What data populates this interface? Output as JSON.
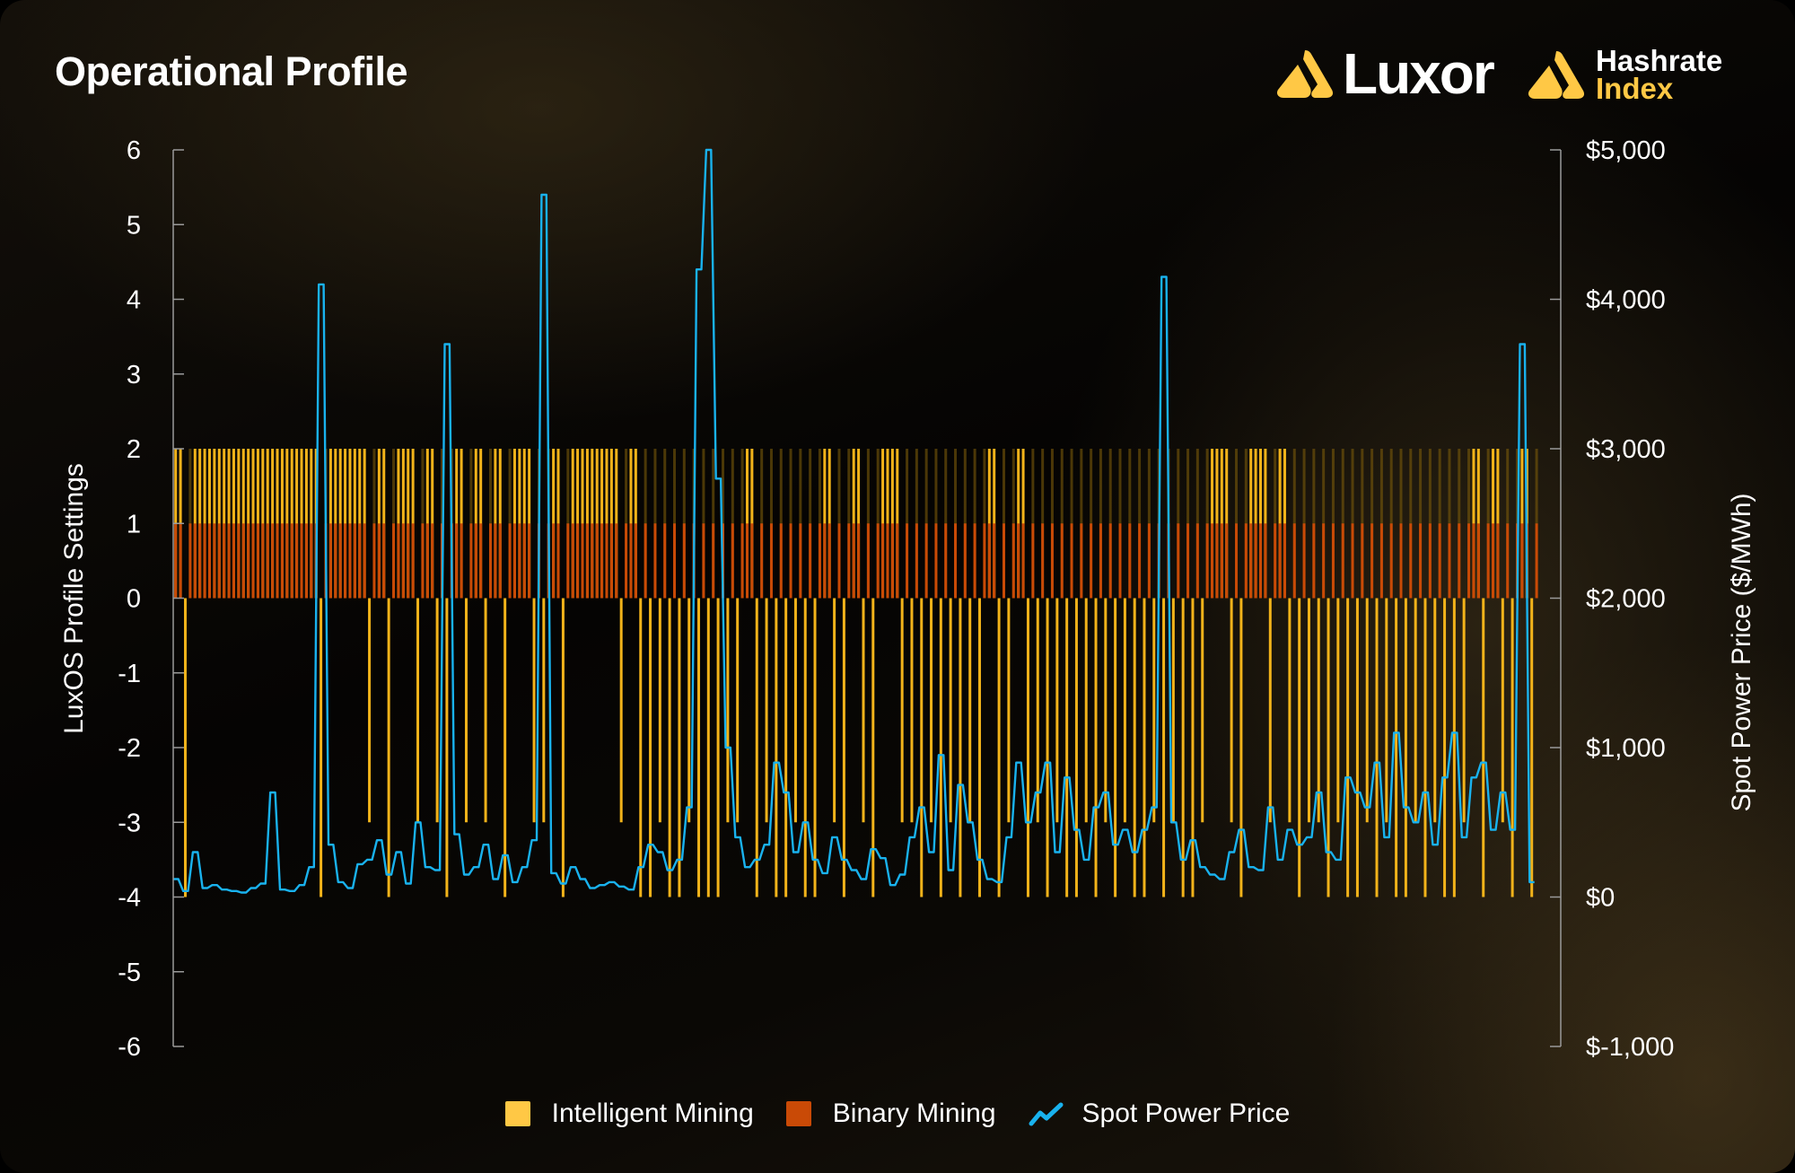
{
  "title": "Operational Profile",
  "logos": {
    "luxor": "Luxor",
    "hashrate_index_line1": "Hashrate",
    "hashrate_index_line2": "Index"
  },
  "colors": {
    "intelligent": "#F2B31A",
    "binary": "#C94A06",
    "price": "#19B2EE",
    "brand": "#FFC845"
  },
  "chart_data": {
    "type": "bar+line",
    "title": "Operational Profile",
    "ylabel": "LuxOS Profile Settings",
    "y2label": "Spot Power Price ($/MWh)",
    "ylim": [
      -6,
      6
    ],
    "y2lim": [
      -1000,
      5000
    ],
    "yticks": [
      "6",
      "5",
      "4",
      "3",
      "2",
      "1",
      "0",
      "-1",
      "-2",
      "-3",
      "-4",
      "-5",
      "-6"
    ],
    "y2ticks": [
      "$5,000",
      "$4,000",
      "$3,000",
      "$2,000",
      "$1,000",
      "$0",
      "$-1,000"
    ],
    "grid": false,
    "legend_position": "bottom",
    "legend": [
      "Intelligent Mining",
      "Binary Mining",
      "Spot Power Price"
    ],
    "series": [
      {
        "name": "Intelligent Mining",
        "type": "bar",
        "axis": "left",
        "values": [
          2,
          -4,
          2,
          2,
          2,
          2,
          2,
          2,
          2,
          2,
          2,
          2,
          2,
          2,
          2,
          -4,
          2,
          2,
          2,
          2,
          -3,
          2,
          -4,
          2,
          2,
          -3,
          2,
          -3,
          -4,
          2,
          -3,
          2,
          -3,
          2,
          -4,
          2,
          2,
          -3,
          -3,
          2,
          -4,
          2,
          2,
          2,
          2,
          2,
          -3,
          2,
          -4,
          -4,
          -3,
          -4,
          -4,
          -3,
          -4,
          -4,
          -4,
          -3,
          -3,
          2,
          -4,
          -3,
          -4,
          -4,
          -3,
          -4,
          -4,
          2,
          -3,
          -4,
          2,
          -3,
          -4,
          2,
          2,
          -3,
          -3,
          -4,
          -3,
          -4,
          -3,
          -4,
          -3,
          -4,
          2,
          -4,
          -3,
          2,
          -4,
          -3,
          -4,
          -3,
          -4,
          -4,
          -3,
          -4,
          -3,
          -4,
          -3,
          -4,
          -4,
          -3,
          -4,
          -3,
          -4,
          -4,
          -3,
          2,
          2,
          -3,
          -4,
          2,
          2,
          -3,
          2,
          -3,
          -4,
          -3,
          -3,
          -4,
          -3,
          -4,
          -4,
          -3,
          -4,
          -3,
          -4,
          -4,
          -3,
          -4,
          -3,
          -4,
          -4,
          -3,
          2,
          -4,
          2,
          -3,
          -4,
          2,
          -4
        ]
      },
      {
        "name": "Binary Mining",
        "type": "bar",
        "axis": "left",
        "value_when_active": 1
      },
      {
        "name": "Spot Power Price",
        "type": "line",
        "axis": "right",
        "values": [
          120,
          40,
          300,
          60,
          80,
          50,
          40,
          30,
          60,
          90,
          700,
          50,
          40,
          80,
          200,
          4100,
          350,
          100,
          60,
          220,
          250,
          380,
          150,
          300,
          90,
          500,
          200,
          180,
          3700,
          420,
          150,
          200,
          350,
          120,
          280,
          100,
          200,
          380,
          4700,
          160,
          90,
          200,
          120,
          60,
          80,
          100,
          70,
          50,
          200,
          350,
          300,
          180,
          250,
          600,
          4200,
          5000,
          2800,
          1000,
          400,
          200,
          250,
          350,
          900,
          700,
          300,
          500,
          250,
          160,
          400,
          250,
          180,
          120,
          320,
          260,
          80,
          150,
          400,
          600,
          300,
          950,
          180,
          750,
          500,
          250,
          120,
          100,
          400,
          900,
          500,
          700,
          900,
          300,
          800,
          450,
          250,
          600,
          700,
          350,
          450,
          300,
          450,
          600,
          4150,
          500,
          250,
          380,
          200,
          150,
          120,
          300,
          450,
          200,
          180,
          600,
          250,
          450,
          350,
          400,
          700,
          300,
          250,
          800,
          700,
          600,
          900,
          400,
          1100,
          600,
          500,
          700,
          350,
          800,
          1100,
          400,
          800,
          900,
          450,
          700,
          450,
          3700,
          100
        ]
      }
    ]
  }
}
